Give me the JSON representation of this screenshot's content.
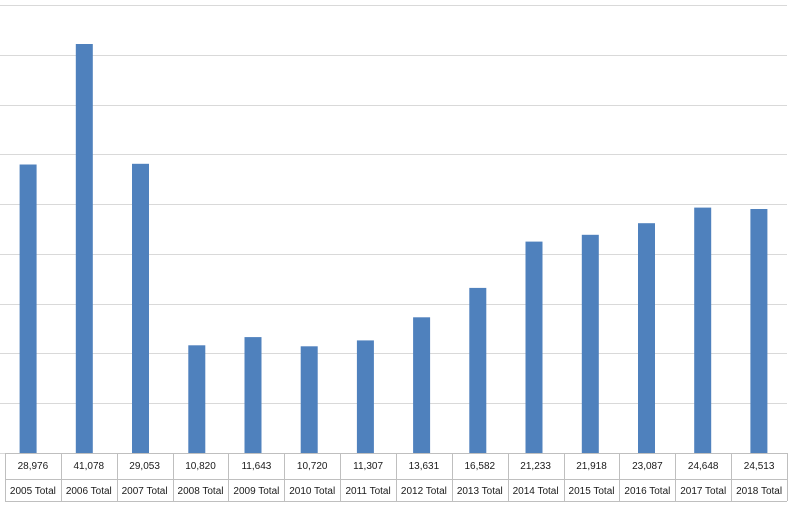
{
  "chart_data": {
    "type": "bar",
    "title": "",
    "xlabel": "",
    "ylabel": "",
    "categories": [
      "2005 Total",
      "2006 Total",
      "2007 Total",
      "2008 Total",
      "2009 Total",
      "2010 Total",
      "2011 Total",
      "2012 Total",
      "2013 Total",
      "2014 Total",
      "2015 Total",
      "2016 Total",
      "2017 Total",
      "2018 Total"
    ],
    "values": [
      28976,
      41078,
      29053,
      10820,
      11643,
      10720,
      11307,
      13631,
      16582,
      21233,
      21918,
      23087,
      24648,
      24513
    ],
    "value_labels": [
      "28,976",
      "41,078",
      "29,053",
      "10,820",
      "11,643",
      "10,720",
      "11,307",
      "13,631",
      "16,582",
      "21,233",
      "21,918",
      "23,087",
      "24,648",
      "24,513"
    ],
    "ylim": [
      0,
      45000
    ],
    "grid": true,
    "legend": "none",
    "data_table": true,
    "bar_color": "#4f81bd"
  }
}
